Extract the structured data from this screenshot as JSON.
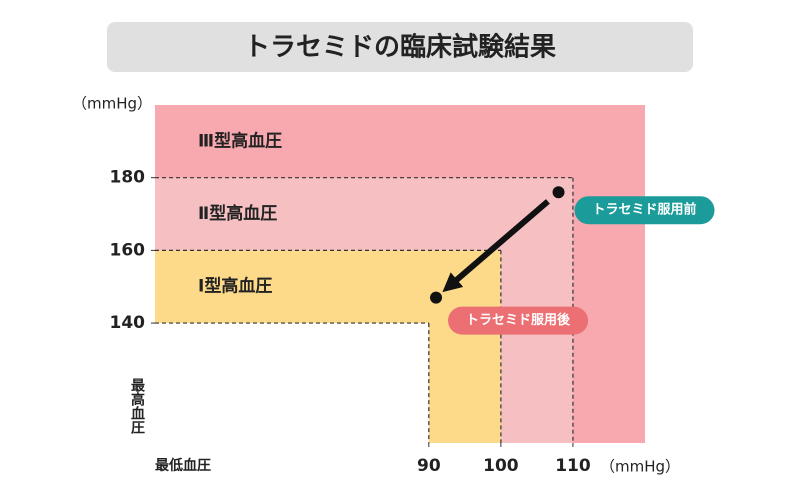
{
  "chart_data": {
    "type": "scatter",
    "title": "トラセミドの臨床試験結果",
    "x_label": "最低血圧",
    "y_label": "最高血圧",
    "x_unit": "（mmHg）",
    "y_unit": "（mmHg）",
    "xlim": [
      52,
      120
    ],
    "ylim": [
      107,
      200
    ],
    "xticks": [
      90,
      100,
      110
    ],
    "yticks": [
      140,
      160,
      180
    ],
    "zones": [
      {
        "name": "Ⅰ型高血圧",
        "x": 90,
        "y": 140,
        "color": "#fdd98a"
      },
      {
        "name": "Ⅱ型高血圧",
        "x": 100,
        "y": 160,
        "color": "#f6c0c2"
      },
      {
        "name": "Ⅲ型高血圧",
        "x": 110,
        "y": 180,
        "color": "#f8a9b0"
      }
    ],
    "series": [
      {
        "name": "トラセミド服用前",
        "color": "#1b9c9a",
        "x": [
          108
        ],
        "values": [
          176
        ]
      },
      {
        "name": "トラセミド服用後",
        "color": "#ec6f73",
        "x": [
          91
        ],
        "values": [
          147
        ]
      }
    ],
    "arrow": true
  }
}
